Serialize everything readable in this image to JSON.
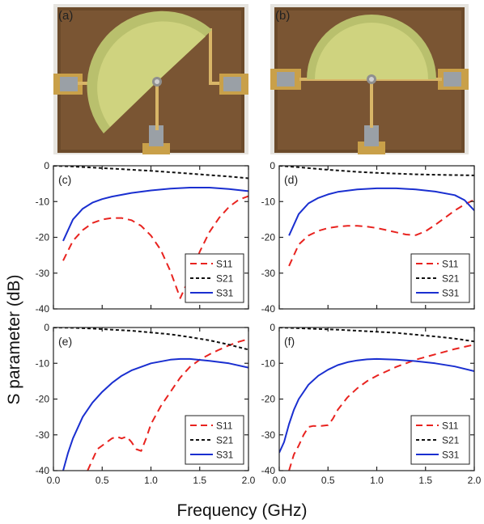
{
  "photos": [
    {
      "tag": "(a)"
    },
    {
      "tag": "(b)"
    }
  ],
  "ylabel": "S parameter (dB)",
  "xlabel": "Frequency (GHz)",
  "colors": {
    "S11": "#e8231f",
    "S21": "#111111",
    "S31": "#1a2fd0"
  },
  "chart_data": [
    {
      "type": "line",
      "tag": "(c)",
      "xlim": [
        0,
        2.0
      ],
      "ylim": [
        -40,
        0
      ],
      "xticks": [],
      "yticks": [
        "0",
        "-10",
        "-20",
        "-30",
        "-40"
      ],
      "legend": "bottom-right",
      "series": [
        {
          "name": "S11",
          "x": [
            0.1,
            0.2,
            0.3,
            0.4,
            0.5,
            0.6,
            0.7,
            0.8,
            0.9,
            1.0,
            1.1,
            1.2,
            1.3,
            1.4,
            1.5,
            1.6,
            1.7,
            1.8,
            1.9,
            2.0
          ],
          "y": [
            -26.5,
            -21,
            -18,
            -16,
            -15,
            -14.6,
            -14.6,
            -15.2,
            -16.8,
            -19.5,
            -23.5,
            -29.5,
            -37,
            -31,
            -24,
            -18.5,
            -14.5,
            -11.5,
            -9.5,
            -8.5
          ]
        },
        {
          "name": "S21",
          "x": [
            0.0,
            0.2,
            0.4,
            0.6,
            0.8,
            1.0,
            1.2,
            1.4,
            1.6,
            1.8,
            2.0
          ],
          "y": [
            0,
            -0.2,
            -0.5,
            -0.8,
            -1.1,
            -1.4,
            -1.8,
            -2.2,
            -2.6,
            -3.0,
            -3.5
          ]
        },
        {
          "name": "S31",
          "x": [
            0.1,
            0.2,
            0.3,
            0.4,
            0.5,
            0.6,
            0.8,
            1.0,
            1.2,
            1.4,
            1.6,
            1.8,
            2.0
          ],
          "y": [
            -21,
            -15,
            -12,
            -10.3,
            -9.3,
            -8.6,
            -7.6,
            -6.9,
            -6.4,
            -6.1,
            -6.1,
            -6.5,
            -7.1
          ]
        }
      ]
    },
    {
      "type": "line",
      "tag": "(d)",
      "xlim": [
        0,
        2.0
      ],
      "ylim": [
        -40,
        0
      ],
      "xticks": [],
      "yticks": [
        "0",
        "-10",
        "-20",
        "-30",
        "-40"
      ],
      "legend": "bottom-right",
      "series": [
        {
          "name": "S11",
          "x": [
            0.1,
            0.2,
            0.3,
            0.4,
            0.5,
            0.6,
            0.7,
            0.8,
            0.9,
            1.0,
            1.1,
            1.2,
            1.3,
            1.4,
            1.5,
            1.6,
            1.7,
            1.8,
            1.9,
            2.0
          ],
          "y": [
            -28,
            -22,
            -19.5,
            -18.2,
            -17.4,
            -17,
            -16.8,
            -16.8,
            -17,
            -17.4,
            -18,
            -18.6,
            -19.2,
            -19.4,
            -18.3,
            -16.5,
            -14.5,
            -12.5,
            -10.8,
            -9.5
          ]
        },
        {
          "name": "S21",
          "x": [
            0.0,
            0.2,
            0.4,
            0.6,
            0.8,
            1.0,
            1.2,
            1.4,
            1.6,
            1.8,
            2.0
          ],
          "y": [
            0,
            -0.4,
            -0.9,
            -1.3,
            -1.7,
            -2.0,
            -2.2,
            -2.4,
            -2.5,
            -2.6,
            -2.7
          ]
        },
        {
          "name": "S31",
          "x": [
            0.1,
            0.2,
            0.3,
            0.4,
            0.5,
            0.6,
            0.8,
            1.0,
            1.2,
            1.4,
            1.6,
            1.8,
            1.9,
            2.0
          ],
          "y": [
            -19.5,
            -13.5,
            -10.5,
            -9,
            -8,
            -7.3,
            -6.6,
            -6.3,
            -6.3,
            -6.6,
            -7.2,
            -8.2,
            -9.6,
            -12.5
          ]
        }
      ]
    },
    {
      "type": "line",
      "tag": "(e)",
      "xlim": [
        0,
        2.0
      ],
      "ylim": [
        -40,
        0
      ],
      "xticks": [
        "0.0",
        "0.5",
        "1.0",
        "1.5",
        "2.0"
      ],
      "yticks": [
        "0",
        "-10",
        "-20",
        "-30",
        "-40"
      ],
      "legend": "bottom-right",
      "series": [
        {
          "name": "S11",
          "x": [
            0.35,
            0.4,
            0.45,
            0.5,
            0.55,
            0.6,
            0.65,
            0.7,
            0.75,
            0.8,
            0.85,
            0.9,
            0.95,
            1.0,
            1.1,
            1.2,
            1.3,
            1.4,
            1.5,
            1.6,
            1.7,
            1.8,
            1.9,
            2.0
          ],
          "y": [
            -40,
            -37,
            -34,
            -33,
            -32,
            -31,
            -30.5,
            -31,
            -30.5,
            -32,
            -34,
            -34.5,
            -31,
            -27,
            -22,
            -18,
            -14,
            -11,
            -9,
            -7.5,
            -6.2,
            -5,
            -4,
            -3.2
          ]
        },
        {
          "name": "S21",
          "x": [
            0.0,
            0.2,
            0.4,
            0.6,
            0.8,
            1.0,
            1.2,
            1.4,
            1.6,
            1.8,
            2.0
          ],
          "y": [
            0,
            -0.1,
            -0.3,
            -0.6,
            -0.9,
            -1.4,
            -1.9,
            -2.7,
            -3.6,
            -4.8,
            -6.2
          ]
        },
        {
          "name": "S31",
          "x": [
            0.1,
            0.15,
            0.2,
            0.3,
            0.4,
            0.5,
            0.6,
            0.7,
            0.8,
            1.0,
            1.2,
            1.3,
            1.4,
            1.6,
            1.8,
            2.0
          ],
          "y": [
            -40,
            -35,
            -31,
            -25,
            -21,
            -18,
            -15.5,
            -13.5,
            -12,
            -10,
            -9,
            -8.8,
            -8.8,
            -9.3,
            -10,
            -11.2
          ]
        }
      ]
    },
    {
      "type": "line",
      "tag": "(f)",
      "xlim": [
        0,
        2.0
      ],
      "ylim": [
        -40,
        0
      ],
      "xticks": [
        "0.0",
        "0.5",
        "1.0",
        "1.5",
        "2.0"
      ],
      "yticks": [
        "0",
        "-10",
        "-20",
        "-30",
        "-40"
      ],
      "legend": "bottom-right",
      "series": [
        {
          "name": "S11",
          "x": [
            0.1,
            0.15,
            0.2,
            0.25,
            0.3,
            0.35,
            0.4,
            0.5,
            0.55,
            0.6,
            0.7,
            0.8,
            0.9,
            1.0,
            1.2,
            1.4,
            1.6,
            1.8,
            2.0
          ],
          "y": [
            -40,
            -35.5,
            -33,
            -30,
            -27.8,
            -27.5,
            -27.6,
            -27.3,
            -25.5,
            -23,
            -19.5,
            -17,
            -15,
            -13.5,
            -11,
            -9,
            -7.5,
            -6,
            -4.8
          ]
        },
        {
          "name": "S21",
          "x": [
            0.0,
            0.2,
            0.4,
            0.6,
            0.8,
            1.0,
            1.2,
            1.4,
            1.6,
            1.8,
            2.0
          ],
          "y": [
            0,
            -0.2,
            -0.4,
            -0.6,
            -0.9,
            -1.2,
            -1.5,
            -2.0,
            -2.5,
            -3.1,
            -3.9
          ]
        },
        {
          "name": "S31",
          "x": [
            0.0,
            0.05,
            0.1,
            0.15,
            0.2,
            0.3,
            0.4,
            0.5,
            0.6,
            0.7,
            0.8,
            0.9,
            1.0,
            1.2,
            1.4,
            1.6,
            1.8,
            2.0
          ],
          "y": [
            -35,
            -32,
            -27,
            -23,
            -20,
            -16,
            -13.5,
            -11.8,
            -10.5,
            -9.7,
            -9.2,
            -8.9,
            -8.8,
            -9,
            -9.4,
            -10,
            -10.9,
            -12.2
          ]
        }
      ]
    }
  ]
}
